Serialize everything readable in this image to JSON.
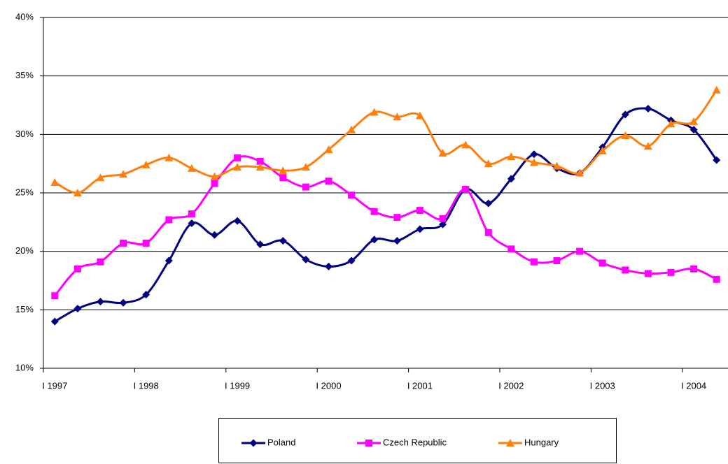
{
  "chart_data": {
    "type": "line",
    "categories": [
      "I 1997",
      null,
      null,
      null,
      "I 1998",
      null,
      null,
      null,
      "I 1999",
      null,
      null,
      null,
      "I 2000",
      null,
      null,
      null,
      "I 2001",
      null,
      null,
      null,
      "I 2002",
      null,
      null,
      null,
      "I 2003",
      null,
      null,
      null,
      "I 2004",
      null
    ],
    "series": [
      {
        "name": "Poland",
        "color": "#000080",
        "marker": "diamond",
        "values": [
          14.0,
          15.1,
          15.7,
          15.6,
          16.3,
          19.2,
          22.4,
          21.4,
          22.6,
          20.6,
          20.9,
          19.3,
          18.7,
          19.2,
          21.0,
          20.9,
          21.9,
          22.3,
          25.3,
          24.1,
          26.2,
          28.3,
          27.1,
          26.7,
          28.9,
          31.7,
          32.2,
          31.2,
          30.4,
          27.8
        ]
      },
      {
        "name": "Czech Republic",
        "color": "#ff00ff",
        "marker": "square",
        "values": [
          16.2,
          18.5,
          19.1,
          20.7,
          20.7,
          22.7,
          23.2,
          25.8,
          28.0,
          27.7,
          26.3,
          25.5,
          26.0,
          24.8,
          23.4,
          22.9,
          23.5,
          22.8,
          25.3,
          21.6,
          20.2,
          19.1,
          19.2,
          20.0,
          19.0,
          18.4,
          18.1,
          18.2,
          18.5,
          17.6
        ]
      },
      {
        "name": "Hungary",
        "color": "#ff7f0e",
        "marker": "triangle",
        "values": [
          25.9,
          25.0,
          26.3,
          26.6,
          27.4,
          28.0,
          27.1,
          26.4,
          27.2,
          27.2,
          26.9,
          27.2,
          28.7,
          30.4,
          31.9,
          31.5,
          31.6,
          28.4,
          29.1,
          27.5,
          28.1,
          27.6,
          27.3,
          26.7,
          28.6,
          29.9,
          29.0,
          30.9,
          31.1,
          33.8
        ]
      }
    ],
    "ylim": [
      10,
      40
    ],
    "yticks": [
      {
        "value": 10,
        "label": "10%"
      },
      {
        "value": 15,
        "label": "15%"
      },
      {
        "value": 20,
        "label": "20%"
      },
      {
        "value": 25,
        "label": "25%"
      },
      {
        "value": 30,
        "label": "30%"
      },
      {
        "value": 35,
        "label": "35%"
      },
      {
        "value": 40,
        "label": "40%"
      }
    ],
    "grid": true,
    "smooth": true,
    "legend": "bottom"
  }
}
